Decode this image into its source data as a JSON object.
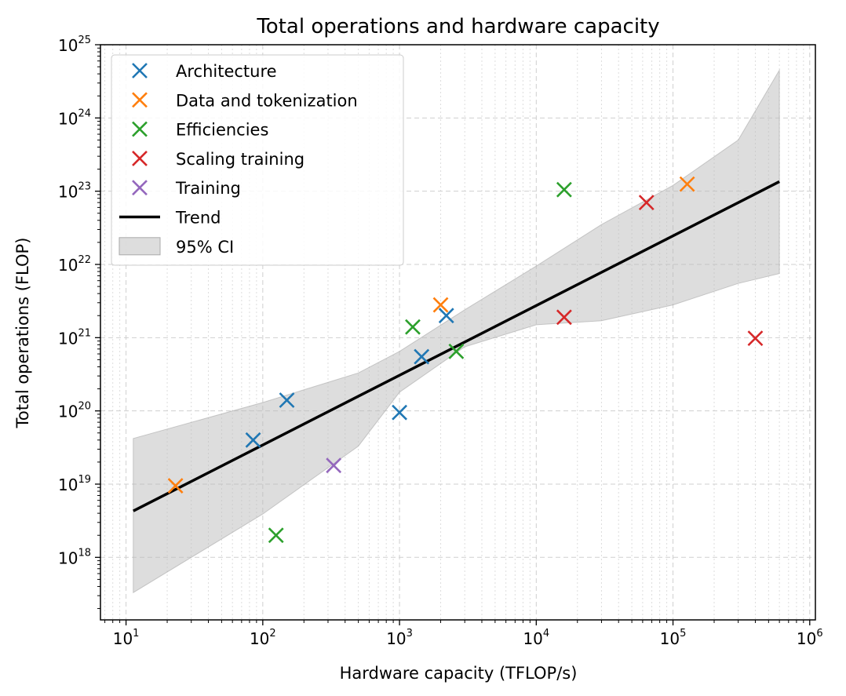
{
  "chart_data": {
    "type": "scatter",
    "title": "Total operations and hardware capacity",
    "xlabel": "Hardware capacity (TFLOP/s)",
    "ylabel": "Total operations (FLOP)",
    "xscale": "log",
    "yscale": "log",
    "xlim": [
      6.5,
      1100000
    ],
    "ylim": [
      1.4e+17,
      1e+25
    ],
    "x_ticks": [
      {
        "base": "10",
        "exp": "1",
        "value": 10
      },
      {
        "base": "10",
        "exp": "2",
        "value": 100
      },
      {
        "base": "10",
        "exp": "3",
        "value": 1000
      },
      {
        "base": "10",
        "exp": "4",
        "value": 10000
      },
      {
        "base": "10",
        "exp": "5",
        "value": 100000
      },
      {
        "base": "10",
        "exp": "6",
        "value": 1000000
      }
    ],
    "y_ticks": [
      {
        "base": "10",
        "exp": "18",
        "value": 1e+18
      },
      {
        "base": "10",
        "exp": "19",
        "value": 1e+19
      },
      {
        "base": "10",
        "exp": "20",
        "value": 1e+20
      },
      {
        "base": "10",
        "exp": "21",
        "value": 1e+21
      },
      {
        "base": "10",
        "exp": "22",
        "value": 1e+22
      },
      {
        "base": "10",
        "exp": "23",
        "value": 1e+23
      },
      {
        "base": "10",
        "exp": "24",
        "value": 1e+24
      },
      {
        "base": "10",
        "exp": "25",
        "value": 1e+25
      }
    ],
    "grid": true,
    "legend_position": "top-left",
    "series": [
      {
        "name": "Architecture",
        "color": "#1f77b4",
        "marker": "x",
        "points": [
          [
            85,
            4e+19
          ],
          [
            150,
            1.4e+20
          ],
          [
            1000,
            9.5e+19
          ],
          [
            1450,
            5.5e+20
          ],
          [
            2200,
            2e+21
          ]
        ]
      },
      {
        "name": "Data and tokenization",
        "color": "#ff7f0e",
        "marker": "x",
        "points": [
          [
            23,
            9.5e+18
          ],
          [
            2000,
            2.8e+21
          ],
          [
            127000,
            1.25e+23
          ]
        ]
      },
      {
        "name": "Efficiencies",
        "color": "#2ca02c",
        "marker": "x",
        "points": [
          [
            125,
            2e+18
          ],
          [
            1250,
            1.4e+21
          ],
          [
            2600,
            6.5e+20
          ],
          [
            16000,
            1.05e+23
          ]
        ]
      },
      {
        "name": "Scaling training",
        "color": "#d62728",
        "marker": "x",
        "points": [
          [
            16000,
            1.9e+21
          ],
          [
            64000,
            7e+22
          ],
          [
            400000,
            9.8e+20
          ]
        ]
      },
      {
        "name": "Training",
        "color": "#9467bd",
        "marker": "x",
        "points": [
          [
            330,
            1.8e+19
          ]
        ]
      }
    ],
    "trend": {
      "name": "Trend",
      "color": "#000000",
      "points": [
        [
          11.3,
          4.3e+18
        ],
        [
          600000,
          1.35e+23
        ]
      ]
    },
    "ci": {
      "name": "95% CI",
      "color": "#bbbbbb",
      "upper": [
        [
          11.3,
          4.2e+19
        ],
        [
          100,
          1.3e+20
        ],
        [
          500,
          3.3e+20
        ],
        [
          1000,
          6.5e+20
        ],
        [
          3000,
          2.4e+21
        ],
        [
          10000,
          9.5e+21
        ],
        [
          30000,
          3.5e+22
        ],
        [
          100000,
          1.2e+23
        ],
        [
          300000,
          5e+23
        ],
        [
          600000,
          4.5e+24
        ]
      ],
      "lower": [
        [
          11.3,
          3.3e+17
        ],
        [
          100,
          3.9e+18
        ],
        [
          500,
          3.3e+19
        ],
        [
          1000,
          1.8e+20
        ],
        [
          3000,
          7.5e+20
        ],
        [
          10000,
          1.5e+21
        ],
        [
          30000,
          1.7e+21
        ],
        [
          100000,
          2.8e+21
        ],
        [
          300000,
          5.5e+21
        ],
        [
          600000,
          7.5e+21
        ]
      ]
    }
  }
}
